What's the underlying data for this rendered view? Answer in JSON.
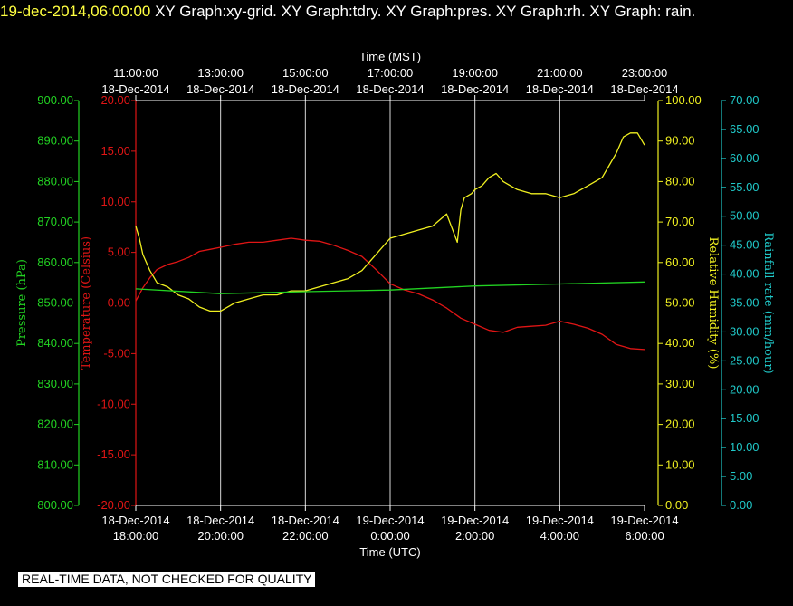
{
  "header": {
    "timestamp": "19-dec-2014,06:00:00",
    "titles": "XY Graph:xy-grid.  XY Graph:tdry.  XY Graph:pres.  XY Graph:rh.  XY Graph: rain."
  },
  "notice": "REAL-TIME DATA, NOT CHECKED FOR QUALITY",
  "colors": {
    "background": "#000000",
    "pressure": "#22d322",
    "temperature": "#e01515",
    "humidity": "#f0f020",
    "rain": "#20c8c8",
    "grid": "#d8d8d8",
    "frame": "#ffffff"
  },
  "chart_data": {
    "type": "line",
    "grid": true,
    "x_top": {
      "label": "Time (MST)",
      "ticks": [
        {
          "date": "18-Dec-2014",
          "time": "11:00:00"
        },
        {
          "date": "18-Dec-2014",
          "time": "13:00:00"
        },
        {
          "date": "18-Dec-2014",
          "time": "15:00:00"
        },
        {
          "date": "18-Dec-2014",
          "time": "17:00:00"
        },
        {
          "date": "18-Dec-2014",
          "time": "19:00:00"
        },
        {
          "date": "18-Dec-2014",
          "time": "21:00:00"
        },
        {
          "date": "18-Dec-2014",
          "time": "23:00:00"
        }
      ]
    },
    "x_bottom": {
      "label": "Time (UTC)",
      "range": [
        "18-Dec-2014 18:00",
        "19-Dec-2014 06:00"
      ],
      "ticks": [
        {
          "date": "18-Dec-2014",
          "time": "18:00:00"
        },
        {
          "date": "18-Dec-2014",
          "time": "20:00:00"
        },
        {
          "date": "18-Dec-2014",
          "time": "22:00:00"
        },
        {
          "date": "19-Dec-2014",
          "time": "0:00:00"
        },
        {
          "date": "19-Dec-2014",
          "time": "2:00:00"
        },
        {
          "date": "19-Dec-2014",
          "time": "4:00:00"
        },
        {
          "date": "19-Dec-2014",
          "time": "6:00:00"
        }
      ]
    },
    "axes": {
      "pressure": {
        "label": "Pressure (hPa)",
        "ylim": [
          800,
          900
        ],
        "ticks": [
          "800.00",
          "810.00",
          "820.00",
          "830.00",
          "840.00",
          "850.00",
          "860.00",
          "870.00",
          "880.00",
          "890.00",
          "900.00"
        ]
      },
      "temperature": {
        "label": "Temperature (Celsius)",
        "ylim": [
          -20,
          20
        ],
        "ticks": [
          "-20.00",
          "-15.00",
          "-10.00",
          "-5.00",
          "0.00",
          "5.00",
          "10.00",
          "15.00",
          "20.00"
        ]
      },
      "humidity": {
        "label": "Relative Humidity (%)",
        "ylim": [
          0,
          100
        ],
        "ticks": [
          "0.00",
          "10.00",
          "20.00",
          "30.00",
          "40.00",
          "50.00",
          "60.00",
          "70.00",
          "80.00",
          "90.00",
          "100.00"
        ]
      },
      "rain": {
        "label": "Rainfall rate (mm/hour)",
        "ylim": [
          0,
          70
        ],
        "ticks": [
          "0.00",
          "5.00",
          "10.00",
          "15.00",
          "20.00",
          "25.00",
          "30.00",
          "35.00",
          "40.00",
          "45.00",
          "50.00",
          "55.00",
          "60.00",
          "65.00",
          "70.00"
        ]
      }
    },
    "series": [
      {
        "axis": "temperature",
        "colorKey": "temperature",
        "x": [
          "18-Dec-2014 18:00",
          "18:10",
          "18:20",
          "18:30",
          "18:45",
          "19:00",
          "19:15",
          "19:30",
          "19:45",
          "20:00",
          "20:20",
          "20:40",
          "21:00",
          "21:20",
          "21:40",
          "22:00",
          "22:20",
          "22:40",
          "23:00",
          "23:20",
          "23:40",
          "19-Dec-2014 00:00",
          "00:20",
          "00:40",
          "01:00",
          "01:20",
          "01:40",
          "02:00",
          "02:20",
          "02:40",
          "03:00",
          "03:20",
          "03:40",
          "04:00",
          "04:20",
          "04:40",
          "05:00",
          "05:20",
          "05:40",
          "06:00"
        ],
        "y": [
          0.2,
          1.5,
          2.5,
          3.3,
          3.8,
          4.1,
          4.5,
          5.1,
          5.3,
          5.5,
          5.8,
          6.0,
          6.0,
          6.2,
          6.4,
          6.2,
          6.1,
          5.7,
          5.2,
          4.6,
          3.3,
          1.9,
          1.3,
          0.9,
          0.3,
          -0.5,
          -1.5,
          -2.1,
          -2.7,
          -2.9,
          -2.4,
          -2.3,
          -2.2,
          -1.8,
          -2.1,
          -2.5,
          -3.1,
          -4.1,
          -4.5,
          -4.6
        ]
      },
      {
        "axis": "humidity",
        "colorKey": "humidity",
        "x": [
          "18-Dec-2014 18:00",
          "18:05",
          "18:10",
          "18:20",
          "18:30",
          "18:45",
          "19:00",
          "19:15",
          "19:30",
          "19:45",
          "20:00",
          "20:20",
          "20:40",
          "21:00",
          "21:20",
          "21:40",
          "22:00",
          "22:20",
          "22:40",
          "23:00",
          "23:20",
          "23:40",
          "19-Dec-2014 00:00",
          "00:20",
          "00:40",
          "01:00",
          "01:20",
          "01:35",
          "01:40",
          "01:45",
          "01:55",
          "02:00",
          "02:10",
          "02:20",
          "02:30",
          "02:40",
          "02:50",
          "03:00",
          "03:20",
          "03:40",
          "04:00",
          "04:20",
          "04:40",
          "05:00",
          "05:10",
          "05:20",
          "05:30",
          "05:40",
          "05:50",
          "06:00"
        ],
        "y": [
          69,
          66,
          62,
          58,
          55,
          54,
          52,
          51,
          49,
          48,
          48,
          50,
          51,
          52,
          52,
          53,
          53,
          54,
          55,
          56,
          58,
          62,
          66,
          67,
          68,
          69,
          72,
          65,
          73,
          76,
          77,
          78,
          79,
          81,
          82,
          80,
          79,
          78,
          77,
          77,
          76,
          77,
          79,
          81,
          84,
          87,
          91,
          92,
          92,
          89
        ]
      },
      {
        "axis": "pressure",
        "colorKey": "pressure",
        "x": [
          "18-Dec-2014 18:00",
          "20:00",
          "22:00",
          "19-Dec-2014 00:00",
          "02:00",
          "04:00",
          "06:00"
        ],
        "y": [
          853.5,
          852.3,
          852.8,
          853.2,
          854.2,
          854.7,
          855.2
        ]
      }
    ]
  }
}
